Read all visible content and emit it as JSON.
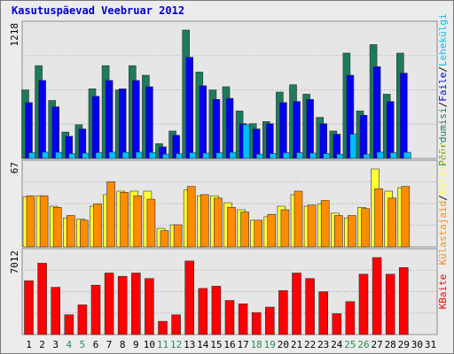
{
  "chart_data": {
    "type": "bar",
    "title": "Kasutuspäevad Veebruar 2012",
    "days": [
      "1",
      "2",
      "3",
      "4",
      "5",
      "6",
      "7",
      "8",
      "9",
      "10",
      "11",
      "12",
      "13",
      "14",
      "15",
      "16",
      "17",
      "18",
      "19",
      "20",
      "21",
      "22",
      "23",
      "24",
      "25",
      "26",
      "27",
      "28",
      "29",
      "30",
      "31"
    ],
    "weekend_days": [
      "4",
      "5",
      "11",
      "12",
      "18",
      "19",
      "25",
      "26"
    ],
    "colors": {
      "title": "#0000cc",
      "weekend_label": "#2e8b57",
      "weekday_label": "#000000",
      "kbaite": "#ff0000",
      "pooranguid": "#1e7a5e",
      "faile": "#0000ee",
      "lehekulgi": "#00bfff",
      "kulastusi": "#ffff33",
      "kulastajaid": "#ff8c00"
    },
    "panels": [
      {
        "id": "top",
        "ymax_label": "1218",
        "ymax": 1218,
        "legend": [
          "Pöördumisi",
          "/",
          "Faile",
          "/",
          "Lehekülgi"
        ],
        "legend_colors": [
          "#1e7a5e",
          "#000000",
          "#0000ee",
          "#000000",
          "#00bfff"
        ],
        "series": [
          {
            "name": "Pöördumisi",
            "values": [
              650,
              880,
              550,
              250,
              320,
              660,
              880,
              650,
              880,
              790,
              140,
              260,
              1218,
              820,
              650,
              680,
              450,
              330,
              350,
              630,
              700,
              610,
              390,
              260,
              1000,
              450,
              1080,
              610,
              1000,
              0,
              0
            ]
          },
          {
            "name": "Faile",
            "values": [
              530,
              740,
              490,
              210,
              280,
              590,
              740,
              660,
              740,
              680,
              110,
              220,
              960,
              690,
              560,
              570,
              330,
              280,
              330,
              530,
              540,
              560,
              330,
              230,
              790,
              410,
              870,
              540,
              810,
              0,
              0
            ]
          },
          {
            "name": "Lehekülgi",
            "values": [
              55,
              60,
              58,
              45,
              50,
              55,
              60,
              58,
              60,
              56,
              40,
              45,
              55,
              50,
              54,
              58,
              320,
              40,
              45,
              55,
              55,
              50,
              45,
              40,
              230,
              40,
              60,
              55,
              58,
              0,
              0
            ]
          }
        ]
      },
      {
        "id": "middle",
        "ymax_label": "67",
        "ymax": 67,
        "legend": [
          "Külastajaid",
          "/",
          "Külastusi"
        ],
        "legend_colors": [
          "#ff8c00",
          "#000000",
          "#ffff33"
        ],
        "series": [
          {
            "name": "Külastusi",
            "values": [
              43,
              44,
              35,
              25,
              24,
              35,
              45,
              48,
              48,
              48,
              16,
              19,
              49,
              44,
              44,
              38,
              32,
              23,
              26,
              35,
              45,
              35,
              37,
              29,
              25,
              34,
              67,
              48,
              51,
              0,
              0
            ]
          },
          {
            "name": "Külastajaid",
            "values": [
              44,
              44,
              34,
              27,
              23,
              37,
              56,
              47,
              44,
              41,
              14,
              19,
              52,
              45,
              42,
              34,
              30,
              23,
              28,
              32,
              48,
              36,
              40,
              27,
              27,
              33,
              50,
              42,
              52,
              0,
              0
            ]
          }
        ]
      },
      {
        "id": "bottom",
        "ymax_label": "7012",
        "ymax": 7012,
        "legend": [
          "KBaite"
        ],
        "legend_colors": [
          "#ff0000"
        ],
        "series": [
          {
            "name": "KBaite",
            "values": [
              4900,
              6500,
              4300,
              1800,
              2700,
              4500,
              5600,
              5300,
              5600,
              5100,
              1200,
              1800,
              6700,
              4200,
              4400,
              3100,
              2800,
              2000,
              2500,
              4000,
              5600,
              5100,
              3900,
              1900,
              3000,
              5500,
              7012,
              5500,
              6100,
              0,
              0
            ]
          }
        ]
      }
    ]
  }
}
